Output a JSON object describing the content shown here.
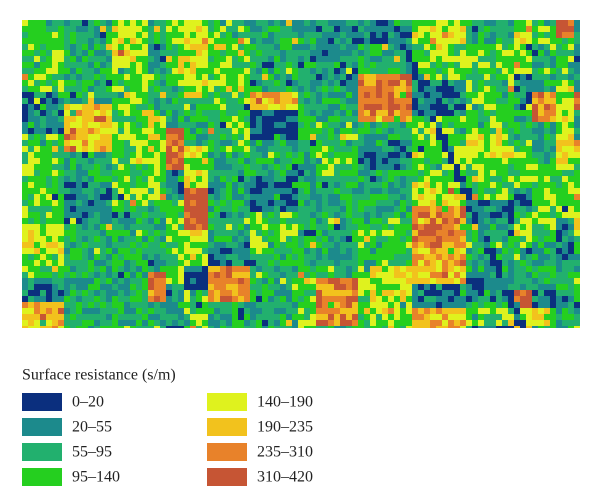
{
  "legend": {
    "title": "Surface resistance (s/m)",
    "items": [
      {
        "label": "0–20",
        "color": "#0b2f7e"
      },
      {
        "label": "20–55",
        "color": "#1c8a8c"
      },
      {
        "label": "55–95",
        "color": "#22b06e"
      },
      {
        "label": "95–140",
        "color": "#25cf1f"
      },
      {
        "label": "140–190",
        "color": "#dff21e"
      },
      {
        "label": "190–235",
        "color": "#f2c21d"
      },
      {
        "label": "235–310",
        "color": "#e8822a"
      },
      {
        "label": "310–420",
        "color": "#c65534"
      }
    ]
  }
}
